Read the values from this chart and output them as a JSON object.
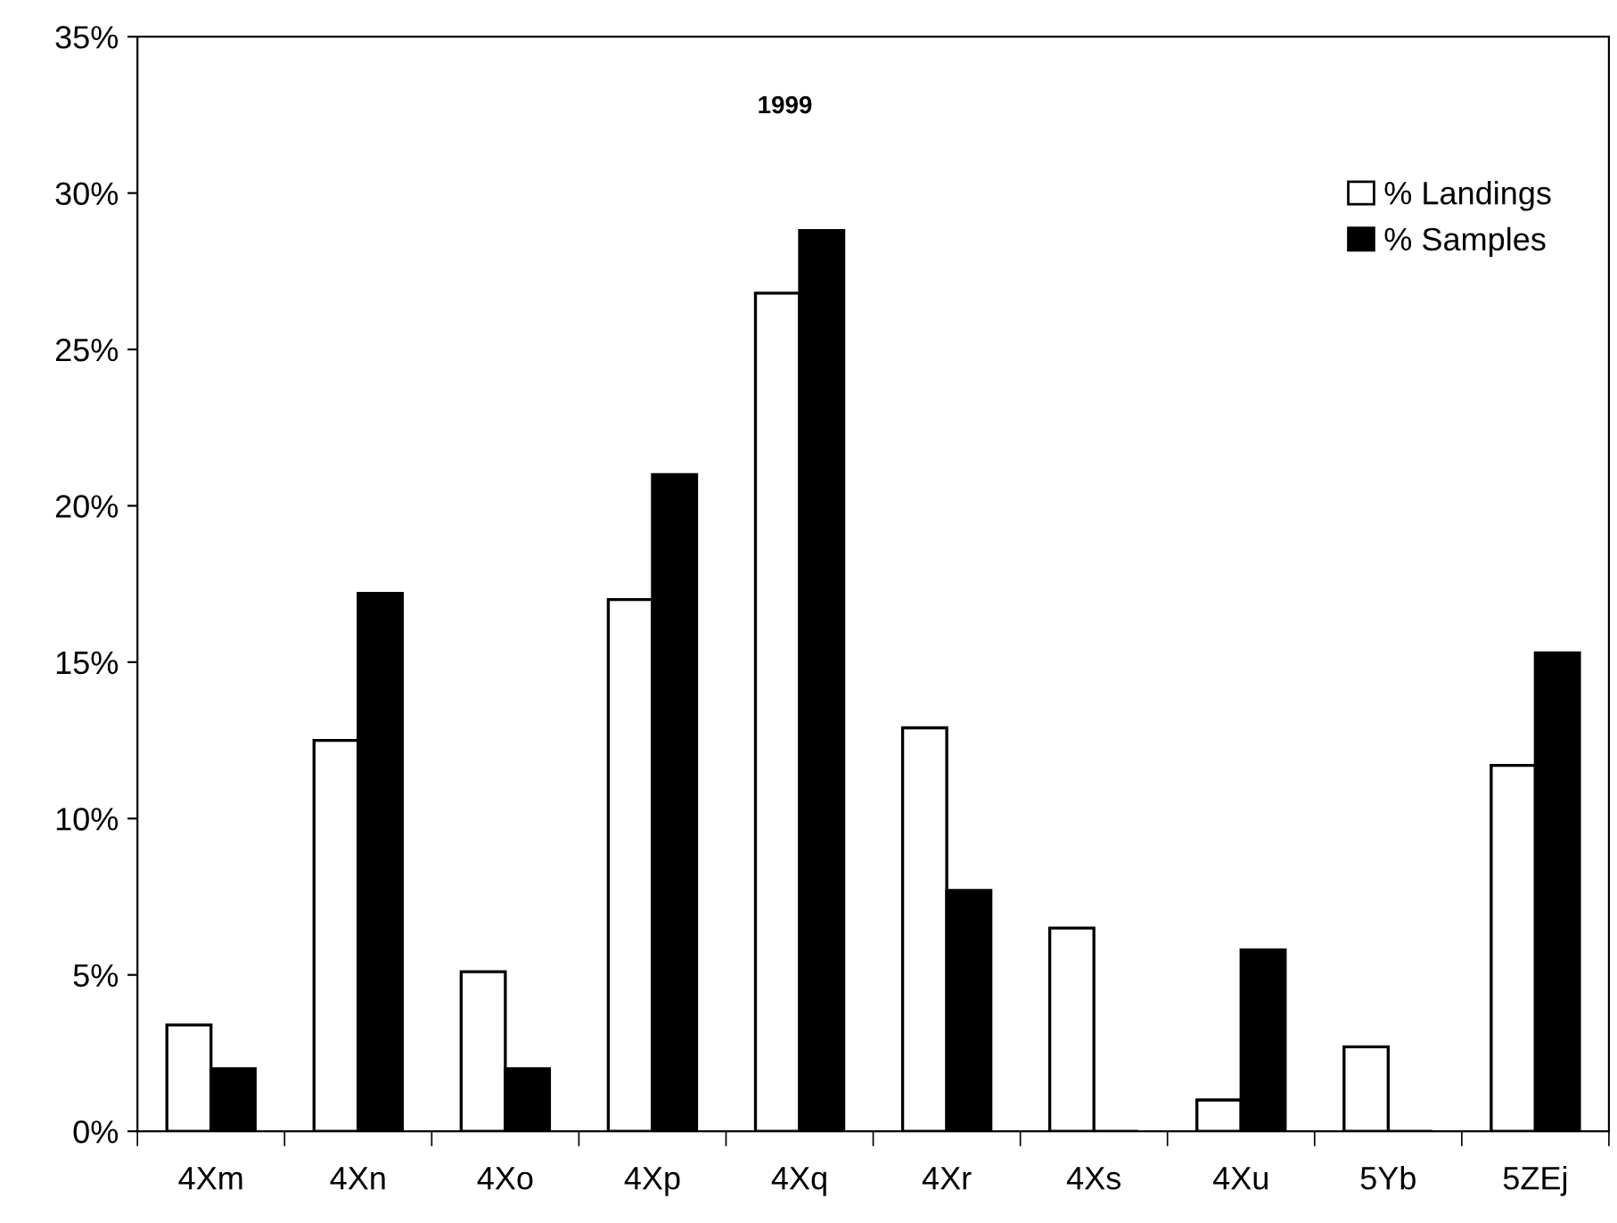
{
  "chart_data": {
    "type": "bar",
    "title": "1999",
    "categories": [
      "4Xm",
      "4Xn",
      "4Xo",
      "4Xp",
      "4Xq",
      "4Xr",
      "4Xs",
      "4Xu",
      "5Yb",
      "5ZEj"
    ],
    "series": [
      {
        "name": "% Landings",
        "color": "#ffffff",
        "values": [
          3.4,
          12.5,
          5.1,
          17.0,
          26.8,
          12.9,
          6.5,
          1.0,
          2.7,
          11.7
        ]
      },
      {
        "name": "% Samples",
        "color": "#000000",
        "values": [
          2.0,
          17.2,
          2.0,
          21.0,
          28.8,
          7.7,
          0,
          5.8,
          0,
          15.3
        ]
      }
    ],
    "ylim": [
      0,
      35
    ],
    "yticks": [
      {
        "value": 0,
        "label": "0%"
      },
      {
        "value": 5,
        "label": "5%"
      },
      {
        "value": 10,
        "label": "10%"
      },
      {
        "value": 15,
        "label": "15%"
      },
      {
        "value": 20,
        "label": "20%"
      },
      {
        "value": 25,
        "label": "25%"
      },
      {
        "value": 30,
        "label": "30%"
      },
      {
        "value": 35,
        "label": "35%"
      }
    ],
    "grid": false,
    "legend": "top right"
  }
}
